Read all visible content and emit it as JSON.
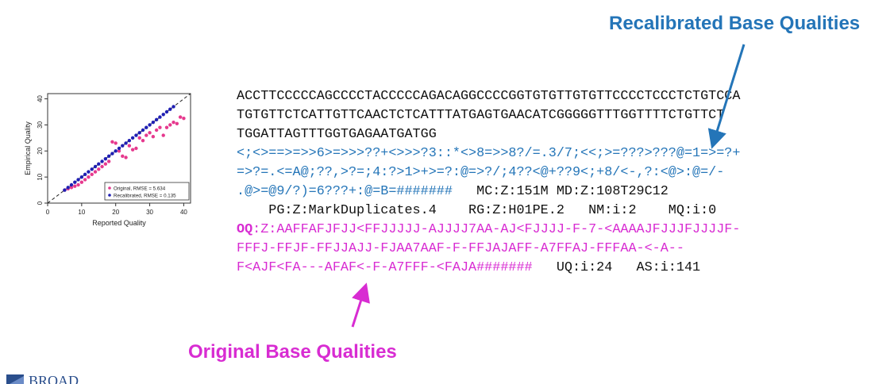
{
  "annotations": {
    "recalibrated": "Recalibrated Base Qualities",
    "original": "Original Base Qualities"
  },
  "sequence_lines": [
    "ACCTTCCCCCAGCCCCTACCCCCAGACAGGCCCCGGTGTGTTGTGTTCCCCTCCCTCTGTCCA",
    "TGTGTTCTCATTGTTCAACTCTCATTTATGAGTGAACATCGGGGGTTTGGTTTTCTGTTCT",
    "TGGATTAGTTTGGTGAGAATGATGG"
  ],
  "recal_lines": [
    "<;<>==>=>>6>=>>>??+<>>>?3::*<>8=>>8?/=.3/7;<<;>=???>???@=1=>=?+",
    "=>?=.<=A@;??,>?=;4:?>1>+>=?:@=>?/;4??<@+??9<;+8/<-,?:<@>:@=/-",
    ".@>=@9/?)=6???+:@=B=#######"
  ],
  "tags_line1": "   MC:Z:151M MD:Z:108T29C12",
  "tags_line2": "    PG:Z:MarkDuplicates.4    RG:Z:H01PE.2   NM:i:2    MQ:i:0",
  "oq": {
    "tag": "OQ",
    "line1_rest": ":Z:AAFFAFJFJJ<FFJJJJJ-AJJJJ7AA-AJ<FJJJJ-F-7-<AAAAJFJJJFJJJJF-",
    "line2": "FFFJ-FFJF-FFJJAJJ-FJAA7AAF-F-FFJAJAFF-A7FFAJ-FFFAA-<-A--",
    "line3": "F<AJF<FA---AFAF<-F-A7FFF-<FAJA#######",
    "line3_tags": "   UQ:i:24   AS:i:141"
  },
  "logo_text": "BROAD",
  "colors": {
    "recalibrated": "#2475b8",
    "original": "#d82cd2",
    "original_points": "#e6398e",
    "recalibrated_points": "#1f1fb4"
  },
  "chart_data": {
    "type": "scatter",
    "xlabel": "Reported Quality",
    "ylabel": "Empirical Quality",
    "xlim": [
      0,
      42
    ],
    "ylim": [
      0,
      42
    ],
    "xticks": [
      0,
      10,
      20,
      30,
      40
    ],
    "yticks": [
      0,
      10,
      20,
      30,
      40
    ],
    "diagonal": true,
    "legend_position": "bottom-right",
    "series": [
      {
        "name": "Original, RMSE = 5.634",
        "color": "#e6398e",
        "points": [
          [
            5,
            5
          ],
          [
            6,
            5.5
          ],
          [
            7,
            6
          ],
          [
            8,
            6.5
          ],
          [
            9,
            7
          ],
          [
            10,
            8
          ],
          [
            11,
            9
          ],
          [
            12,
            10
          ],
          [
            13,
            11
          ],
          [
            14,
            12
          ],
          [
            15,
            13
          ],
          [
            16,
            14
          ],
          [
            17,
            15
          ],
          [
            18,
            16
          ],
          [
            19,
            23.5
          ],
          [
            20,
            23
          ],
          [
            21,
            20
          ],
          [
            22,
            18
          ],
          [
            23,
            17.5
          ],
          [
            24,
            22
          ],
          [
            25,
            20.5
          ],
          [
            26,
            21
          ],
          [
            27,
            25
          ],
          [
            28,
            24
          ],
          [
            29,
            26
          ],
          [
            30,
            27
          ],
          [
            31,
            25.5
          ],
          [
            32,
            28
          ],
          [
            33,
            29
          ],
          [
            34,
            26
          ],
          [
            35,
            29
          ],
          [
            36,
            30
          ],
          [
            37,
            31
          ],
          [
            38,
            30.5
          ],
          [
            39,
            33
          ],
          [
            40,
            32.5
          ]
        ]
      },
      {
        "name": "Recalibrated, RMSE = 0.135",
        "color": "#1f1fb4",
        "points": [
          [
            5,
            5
          ],
          [
            6,
            6
          ],
          [
            7,
            7
          ],
          [
            8,
            8
          ],
          [
            9,
            9
          ],
          [
            10,
            10
          ],
          [
            11,
            11
          ],
          [
            12,
            12
          ],
          [
            13,
            13
          ],
          [
            14,
            14
          ],
          [
            15,
            15
          ],
          [
            16,
            16
          ],
          [
            17,
            17
          ],
          [
            18,
            18
          ],
          [
            19,
            19
          ],
          [
            20,
            20
          ],
          [
            21,
            21
          ],
          [
            22,
            22
          ],
          [
            23,
            23
          ],
          [
            24,
            24
          ],
          [
            25,
            25
          ],
          [
            26,
            26
          ],
          [
            27,
            27
          ],
          [
            28,
            28
          ],
          [
            29,
            29
          ],
          [
            30,
            30
          ],
          [
            31,
            31
          ],
          [
            32,
            32
          ],
          [
            33,
            33
          ],
          [
            34,
            34
          ],
          [
            35,
            35
          ],
          [
            36,
            36
          ],
          [
            37,
            37
          ]
        ]
      }
    ]
  }
}
